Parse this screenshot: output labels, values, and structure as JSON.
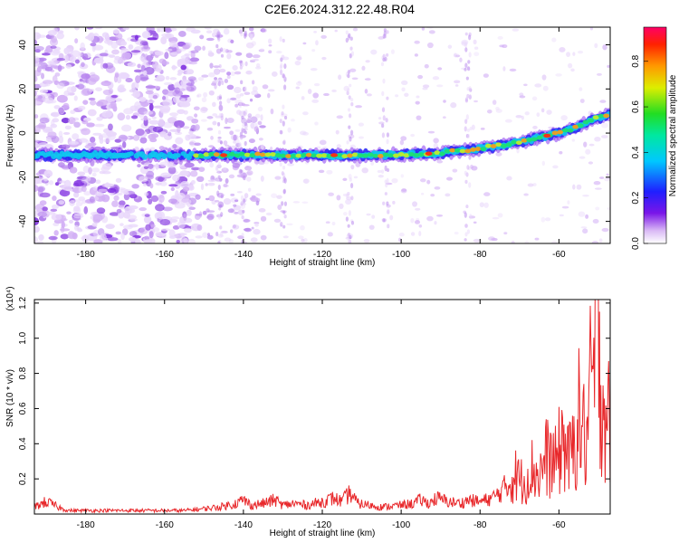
{
  "page": {
    "title": "C2E6.2024.312.22.48.R04"
  },
  "chart_data": [
    {
      "type": "heatmap",
      "xlabel": "Height of straight line (km)",
      "ylabel": "Frequency (Hz)",
      "xlim": [
        -193,
        -47
      ],
      "ylim": [
        -50,
        48
      ],
      "xticks": [
        -180,
        -160,
        -140,
        -120,
        -100,
        -80,
        -60
      ],
      "yticks": [
        -40,
        -20,
        0,
        20,
        40
      ],
      "colorbar": {
        "label": "Normalized spectral amplitude",
        "range": [
          0,
          0.95
        ],
        "ticks": [
          0.0,
          0.2,
          0.4,
          0.6,
          0.8
        ]
      },
      "ridge": {
        "x": [
          -193,
          -180,
          -170,
          -160,
          -150,
          -140,
          -130,
          -120,
          -110,
          -100,
          -90,
          -80,
          -70,
          -60,
          -55,
          -50,
          -47
        ],
        "y": [
          -10,
          -10,
          -10,
          -10,
          -10,
          -10,
          -10,
          -10,
          -10,
          -10,
          -9,
          -7,
          -4,
          0,
          3,
          7,
          9
        ]
      },
      "grid": false
    },
    {
      "type": "line",
      "xlabel": "Height of straight line (km)",
      "ylabel": "SNR (10 * v/v)",
      "y_multiplier": "(x10⁴)",
      "xlim": [
        -193,
        -47
      ],
      "ylim": [
        0,
        1.22
      ],
      "xticks": [
        -180,
        -160,
        -140,
        -120,
        -100,
        -80,
        -60
      ],
      "yticks": [
        0.2,
        0.4,
        0.6,
        0.8,
        1.0,
        1.2
      ],
      "series": [
        {
          "color": "#e8272a",
          "x": [
            -193,
            -190,
            -188,
            -186,
            -184,
            -180,
            -175,
            -170,
            -165,
            -160,
            -155,
            -150,
            -146,
            -142,
            -140,
            -138,
            -135,
            -132,
            -130,
            -127,
            -124,
            -120,
            -117,
            -115,
            -113,
            -111,
            -108,
            -105,
            -100,
            -97,
            -95,
            -93,
            -91,
            -88,
            -85,
            -83,
            -80,
            -77,
            -75,
            -73,
            -71,
            -69,
            -67,
            -65,
            -63,
            -61,
            -59,
            -57,
            -55,
            -53,
            -52,
            -51,
            -50,
            -49,
            -48,
            -47
          ],
          "y": [
            0.04,
            0.07,
            0.05,
            0.03,
            0.02,
            0.02,
            0.02,
            0.02,
            0.02,
            0.02,
            0.02,
            0.03,
            0.04,
            0.06,
            0.08,
            0.05,
            0.06,
            0.08,
            0.05,
            0.06,
            0.05,
            0.07,
            0.09,
            0.07,
            0.12,
            0.06,
            0.05,
            0.04,
            0.05,
            0.06,
            0.08,
            0.06,
            0.09,
            0.07,
            0.06,
            0.08,
            0.07,
            0.09,
            0.12,
            0.17,
            0.22,
            0.18,
            0.26,
            0.22,
            0.33,
            0.28,
            0.42,
            0.3,
            0.55,
            0.4,
            0.7,
            0.8,
            1.2,
            0.6,
            0.65,
            0.45
          ]
        }
      ],
      "grid": false
    }
  ]
}
